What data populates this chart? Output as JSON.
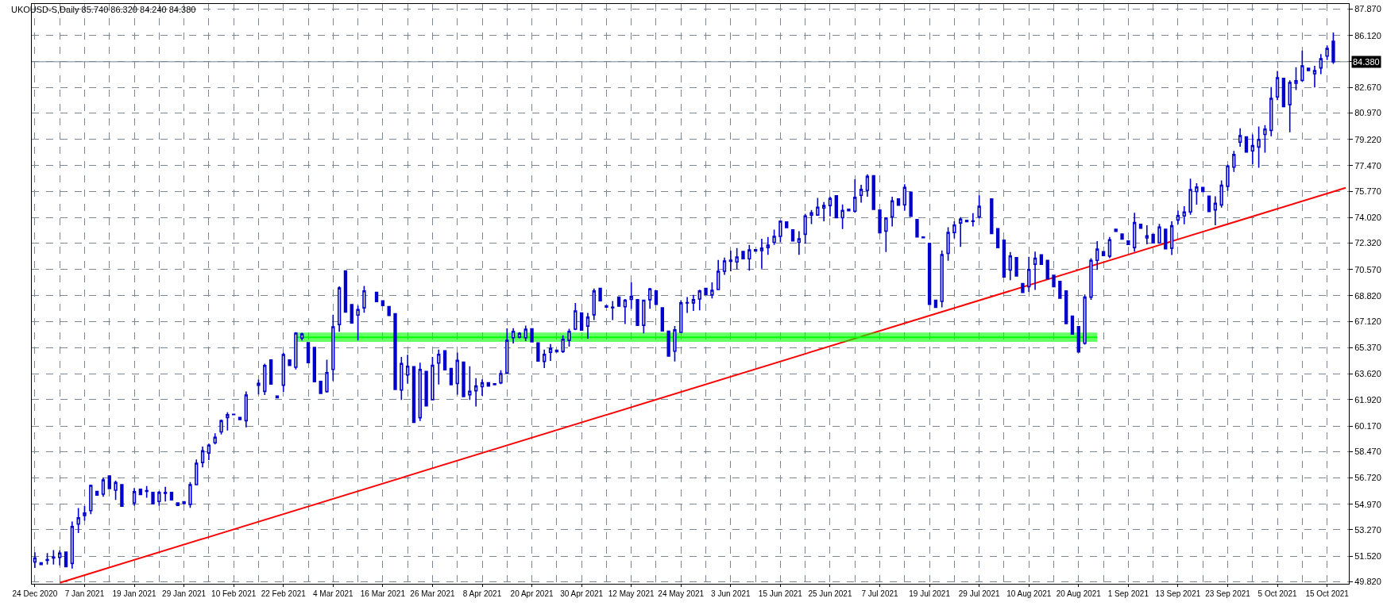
{
  "chart_data": {
    "type": "candlestick",
    "title": "UKOUSD-S,Daily 85.740 86.320 84.240 84.380",
    "categories": [
      "24 Dec 2020",
      null,
      null,
      null,
      null,
      null,
      null,
      null,
      "7 Jan 2021",
      null,
      null,
      null,
      null,
      null,
      null,
      null,
      "19 Jan 2021",
      null,
      null,
      null,
      null,
      null,
      null,
      null,
      "29 Jan 2021",
      null,
      null,
      null,
      null,
      null,
      null,
      null,
      "10 Feb 2021",
      null,
      null,
      null,
      null,
      null,
      null,
      null,
      "22 Feb 2021",
      null,
      null,
      null,
      null,
      null,
      null,
      null,
      "4 Mar 2021",
      null,
      null,
      null,
      null,
      null,
      null,
      null,
      "16 Mar 2021",
      null,
      null,
      null,
      null,
      null,
      null,
      null,
      "26 Mar 2021",
      null,
      null,
      null,
      null,
      null,
      null,
      null,
      "8 Apr 2021",
      null,
      null,
      null,
      null,
      null,
      null,
      null,
      "20 Apr 2021",
      null,
      null,
      null,
      null,
      null,
      null,
      null,
      "30 Apr 2021",
      null,
      null,
      null,
      null,
      null,
      null,
      null,
      "12 May 2021",
      null,
      null,
      null,
      null,
      null,
      null,
      null,
      "24 May 2021",
      null,
      null,
      null,
      null,
      null,
      null,
      null,
      "3 Jun 2021",
      null,
      null,
      null,
      null,
      null,
      null,
      null,
      "15 Jun 2021",
      null,
      null,
      null,
      null,
      null,
      null,
      null,
      "25 Jun 2021",
      null,
      null,
      null,
      null,
      null,
      null,
      null,
      "7 Jul 2021",
      null,
      null,
      null,
      null,
      null,
      null,
      null,
      "19 Jul 2021",
      null,
      null,
      null,
      null,
      null,
      null,
      null,
      "29 Jul 2021",
      null,
      null,
      null,
      null,
      null,
      null,
      null,
      "10 Aug 2021",
      null,
      null,
      null,
      null,
      null,
      null,
      null,
      "20 Aug 2021",
      null,
      null,
      null,
      null,
      null,
      null,
      null,
      "1 Sep 2021",
      null,
      null,
      null,
      null,
      null,
      null,
      null,
      "13 Sep 2021",
      null,
      null,
      null,
      null,
      null,
      null,
      null,
      "23 Sep 2021",
      null,
      null,
      null,
      null,
      null,
      null,
      null,
      "5 Oct 2021",
      null,
      null,
      null,
      null,
      null,
      null,
      null,
      "15 Oct 2021",
      null,
      null,
      null
    ],
    "series": [
      {
        "color": "#0000cc",
        "ohlc": [
          [
            51.13,
            51.78,
            50.73,
            51.39
          ],
          [
            51.08,
            51.08,
            50.96,
            50.96
          ],
          [
            51.24,
            51.72,
            50.96,
            51.29
          ],
          [
            51.39,
            51.92,
            50.96,
            51.46
          ],
          [
            51.43,
            51.9,
            50.9,
            51.72
          ],
          [
            51.78,
            51.78,
            50.82,
            50.82
          ],
          [
            51.03,
            53.82,
            50.69,
            53.49
          ],
          [
            53.65,
            54.71,
            53.05,
            54.07
          ],
          [
            54.22,
            54.85,
            53.87,
            54.38
          ],
          [
            54.54,
            56.27,
            54.31,
            56.22
          ],
          [
            55.82,
            55.82,
            55.57,
            55.57
          ],
          [
            55.64,
            56.74,
            55.47,
            56.58
          ],
          [
            56.85,
            56.85,
            56.01,
            56.01
          ],
          [
            55.9,
            56.53,
            55.26,
            56.41
          ],
          [
            56.27,
            56.27,
            54.84,
            54.84
          ],
          null,
          [
            55.06,
            56.04,
            54.87,
            55.8
          ],
          [
            55.97,
            55.97,
            55.62,
            55.62
          ],
          [
            55.83,
            56.18,
            55.4,
            55.87
          ],
          [
            55.76,
            55.76,
            54.99,
            54.99
          ],
          [
            55.15,
            55.85,
            54.87,
            55.75
          ],
          [
            55.75,
            56.13,
            55.15,
            55.69
          ],
          [
            55.76,
            55.76,
            55.26,
            55.26
          ],
          [
            55.06,
            55.06,
            54.89,
            54.89
          ],
          [
            55.13,
            55.13,
            55.01,
            55.01
          ],
          [
            54.96,
            56.44,
            54.73,
            56.27
          ],
          [
            56.27,
            57.95,
            56.27,
            57.69
          ],
          [
            57.74,
            58.8,
            57.42,
            58.52
          ],
          [
            58.37,
            59.0,
            57.9,
            58.89
          ],
          [
            59.05,
            59.68,
            58.94,
            59.42
          ],
          [
            59.78,
            60.6,
            59.61,
            60.52
          ],
          [
            60.73,
            61.08,
            59.87,
            60.92
          ],
          [
            60.93,
            60.95,
            60.93,
            60.95
          ],
          [
            60.74,
            60.74,
            60.6,
            60.6
          ],
          [
            60.52,
            62.47,
            60.08,
            62.23
          ],
          null,
          [
            62.88,
            63.26,
            62.27,
            63.0
          ],
          [
            62.47,
            64.31,
            62.23,
            64.19
          ],
          [
            64.56,
            64.56,
            62.96,
            62.96
          ],
          [
            62.16,
            62.16,
            62.04,
            62.04
          ],
          [
            62.88,
            65.03,
            62.44,
            64.92
          ],
          [
            64.56,
            64.56,
            64.19,
            64.19
          ],
          [
            64.07,
            66.41,
            63.93,
            66.34
          ],
          [
            66.01,
            66.37,
            65.85,
            66.29
          ],
          [
            65.71,
            65.71,
            64.38,
            64.38
          ],
          [
            65.39,
            65.39,
            63.12,
            63.12
          ],
          [
            63.14,
            63.14,
            62.34,
            62.34
          ],
          [
            62.46,
            64.57,
            62.39,
            63.72
          ],
          [
            63.93,
            67.56,
            63.17,
            66.76
          ],
          [
            66.91,
            69.45,
            66.43,
            69.34
          ],
          [
            70.48,
            70.48,
            67.74,
            67.74
          ],
          [
            68.24,
            68.24,
            67.02,
            67.02
          ],
          [
            67.54,
            68.17,
            65.85,
            67.91
          ],
          [
            68.02,
            69.48,
            67.7,
            69.15
          ],
          null,
          [
            69.05,
            69.05,
            68.44,
            68.44
          ],
          [
            68.49,
            68.49,
            68.17,
            68.17
          ],
          [
            68.1,
            68.1,
            67.51,
            67.51
          ],
          [
            67.63,
            67.63,
            62.6,
            62.6
          ],
          [
            62.56,
            64.76,
            61.9,
            64.32
          ],
          [
            63.56,
            64.9,
            62.98,
            64.14
          ],
          [
            64.11,
            64.11,
            60.41,
            60.41
          ],
          [
            60.72,
            64.37,
            60.5,
            63.93
          ],
          [
            63.79,
            63.79,
            61.51,
            61.51
          ],
          [
            61.92,
            64.76,
            61.92,
            64.2
          ],
          [
            64.35,
            65.25,
            62.92,
            64.93
          ],
          [
            65.16,
            65.16,
            63.91,
            63.91
          ],
          [
            63.99,
            63.99,
            62.92,
            62.92
          ],
          [
            62.99,
            65.05,
            62.25,
            64.53
          ],
          [
            64.41,
            64.41,
            62.13,
            62.13
          ],
          [
            62.25,
            64.14,
            61.9,
            62.48
          ],
          [
            62.51,
            63.35,
            61.46,
            62.83
          ],
          [
            62.78,
            63.27,
            62.18,
            63.04
          ],
          [
            63.04,
            63.04,
            62.83,
            62.83
          ],
          [
            62.98,
            62.98,
            62.92,
            62.92
          ],
          [
            63.04,
            63.88,
            62.95,
            63.65
          ],
          [
            63.7,
            66.65,
            63.7,
            65.86
          ],
          [
            66.04,
            66.67,
            65.65,
            66.46
          ],
          [
            66.07,
            66.4,
            66.0,
            66.33
          ],
          [
            66.04,
            66.84,
            65.81,
            66.6
          ],
          [
            66.63,
            66.63,
            65.76,
            65.76
          ],
          [
            65.69,
            65.69,
            64.49,
            64.49
          ],
          [
            64.46,
            65.25,
            64.02,
            64.93
          ],
          [
            65.07,
            65.62,
            64.49,
            65.32
          ],
          [
            65.2,
            65.2,
            65.11,
            65.11
          ],
          [
            65.12,
            66.19,
            65.02,
            65.93
          ],
          [
            65.86,
            66.63,
            65.44,
            66.46
          ],
          [
            66.6,
            68.35,
            66.54,
            67.82
          ],
          [
            67.68,
            67.68,
            66.54,
            66.54
          ],
          [
            66.81,
            67.68,
            65.97,
            67.4
          ],
          [
            67.56,
            69.31,
            67.21,
            69.14
          ],
          [
            69.31,
            69.31,
            68.49,
            68.49
          ],
          [
            68.15,
            68.15,
            68.07,
            68.07
          ],
          [
            68.03,
            68.47,
            67.21,
            68.07
          ],
          [
            68.74,
            68.74,
            68.14,
            68.14
          ],
          [
            68.09,
            68.61,
            66.95,
            68.53
          ],
          [
            68.59,
            69.72,
            67.96,
            68.77
          ],
          [
            68.56,
            68.56,
            66.86,
            66.86
          ],
          [
            66.86,
            68.53,
            66.33,
            68.53
          ],
          [
            68.56,
            69.35,
            67.96,
            69.28
          ],
          [
            69.14,
            69.14,
            68.26,
            68.26
          ],
          [
            68.03,
            68.03,
            66.49,
            66.49
          ],
          [
            66.47,
            66.47,
            64.81,
            64.81
          ],
          [
            65.14,
            66.82,
            64.46,
            66.56
          ],
          [
            66.39,
            68.53,
            66.39,
            68.35
          ],
          [
            68.35,
            68.74,
            67.68,
            68.37
          ],
          [
            68.35,
            68.88,
            67.82,
            68.56
          ],
          [
            68.61,
            69.23,
            67.86,
            69.14
          ],
          [
            69.31,
            69.31,
            68.91,
            68.91
          ],
          [
            68.88,
            69.72,
            68.65,
            69.19
          ],
          [
            69.24,
            71.21,
            69.24,
            70.45
          ],
          [
            70.45,
            71.36,
            70.22,
            71.14
          ],
          [
            71.19,
            71.82,
            70.45,
            71.12
          ],
          [
            71.07,
            71.99,
            70.58,
            71.4
          ],
          [
            71.77,
            71.77,
            71.28,
            71.28
          ],
          [
            71.28,
            72.21,
            70.49,
            71.87
          ],
          [
            71.89,
            71.89,
            71.8,
            71.8
          ],
          [
            71.82,
            72.61,
            70.63,
            71.99
          ],
          [
            72.03,
            72.73,
            71.54,
            72.19
          ],
          [
            72.38,
            73.22,
            72.21,
            72.77
          ],
          [
            72.77,
            73.82,
            72.38,
            73.78
          ],
          [
            73.73,
            73.73,
            73.35,
            73.35
          ],
          [
            73.21,
            73.21,
            72.47,
            72.47
          ],
          [
            72.38,
            73.12,
            71.54,
            72.61
          ],
          [
            72.91,
            74.27,
            72.29,
            74.13
          ],
          [
            74.19,
            74.52,
            73.59,
            74.34
          ],
          [
            74.19,
            75.33,
            74.19,
            74.71
          ],
          [
            74.66,
            75.05,
            73.78,
            74.82
          ],
          [
            74.82,
            75.41,
            74.1,
            75.29
          ],
          [
            75.47,
            75.47,
            74.01,
            74.01
          ],
          [
            74.01,
            74.89,
            73.26,
            74.5
          ],
          [
            74.57,
            74.57,
            74.48,
            74.48
          ],
          [
            74.45,
            76.57,
            74.34,
            75.36
          ],
          [
            75.5,
            76.2,
            75.01,
            75.89
          ],
          [
            75.83,
            76.9,
            75.41,
            76.76
          ],
          [
            76.8,
            76.8,
            74.57,
            74.57
          ],
          [
            74.52,
            74.52,
            73.01,
            73.01
          ],
          [
            73.12,
            74.02,
            71.73,
            73.99
          ],
          [
            74.08,
            75.41,
            73.43,
            75.13
          ],
          [
            75.26,
            75.26,
            74.84,
            74.84
          ],
          [
            74.87,
            76.24,
            74.48,
            76.03
          ],
          [
            75.71,
            75.71,
            74.1,
            74.1
          ],
          [
            73.89,
            73.89,
            72.73,
            72.73
          ],
          [
            72.73,
            72.73,
            72.68,
            72.68
          ],
          [
            72.31,
            72.31,
            68.26,
            68.26
          ],
          [
            68.52,
            68.52,
            68.05,
            68.05
          ],
          [
            68.45,
            71.84,
            68.05,
            71.56
          ],
          [
            71.64,
            73.38,
            71.15,
            73.03
          ],
          [
            73.03,
            73.78,
            72.64,
            73.52
          ],
          [
            73.66,
            74.05,
            72.07,
            73.92
          ],
          [
            73.84,
            73.84,
            73.75,
            73.75
          ],
          [
            73.77,
            74.31,
            73.43,
            73.8
          ],
          [
            74.08,
            75.5,
            73.96,
            74.77
          ],
          null,
          [
            75.26,
            75.26,
            72.96,
            72.96
          ],
          [
            73.29,
            73.29,
            72.03,
            72.03
          ],
          [
            72.52,
            72.52,
            70.07,
            70.07
          ],
          [
            70.54,
            71.73,
            69.86,
            71.47
          ],
          [
            71.36,
            71.36,
            70.14,
            70.14
          ],
          [
            69.63,
            69.63,
            69.05,
            69.05
          ],
          [
            69.43,
            71.41,
            69.08,
            70.57
          ],
          [
            70.92,
            71.76,
            69.22,
            71.32
          ],
          [
            71.55,
            71.55,
            70.92,
            70.92
          ],
          [
            71.18,
            71.18,
            69.96,
            69.96
          ],
          [
            70.19,
            70.19,
            69.43,
            69.43
          ],
          [
            69.78,
            69.78,
            68.66,
            68.66
          ],
          [
            69.14,
            69.14,
            66.98,
            66.98
          ],
          [
            67.47,
            67.47,
            66.28,
            66.28
          ],
          [
            66.77,
            66.77,
            65.09,
            65.09
          ],
          [
            65.67,
            68.91,
            65.58,
            68.73
          ],
          [
            68.73,
            71.32,
            68.56,
            71.18
          ],
          [
            71.18,
            72.46,
            70.55,
            71.92
          ],
          [
            71.76,
            71.76,
            71.5,
            71.5
          ],
          [
            71.46,
            72.73,
            71.32,
            72.55
          ],
          [
            73.25,
            73.25,
            73.11,
            73.11
          ],
          [
            72.93,
            72.93,
            72.59,
            72.59
          ],
          [
            72.46,
            72.46,
            72.24,
            72.24
          ],
          [
            72.03,
            74.34,
            71.76,
            73.69
          ],
          [
            73.57,
            73.57,
            73.32,
            73.32
          ],
          [
            72.67,
            73.51,
            72.24,
            72.81
          ],
          [
            72.9,
            72.9,
            72.34,
            72.34
          ],
          [
            72.34,
            73.6,
            72.29,
            73.39
          ],
          [
            73.25,
            73.25,
            71.94,
            71.94
          ],
          [
            71.99,
            73.78,
            71.53,
            73.48
          ],
          [
            73.86,
            74.48,
            73.57,
            74.16
          ],
          [
            74.13,
            74.77,
            73.57,
            74.39
          ],
          [
            74.39,
            76.61,
            74.21,
            75.88
          ],
          [
            75.75,
            76.31,
            74.88,
            76.05
          ],
          [
            76.02,
            76.02,
            75.75,
            75.75
          ],
          [
            75.44,
            75.44,
            74.42,
            74.42
          ],
          [
            74.53,
            75.44,
            73.51,
            74.97
          ],
          [
            74.86,
            76.49,
            74.69,
            76.17
          ],
          [
            76.1,
            77.54,
            75.79,
            77.45
          ],
          [
            77.37,
            78.45,
            77.05,
            78.21
          ],
          [
            79.03,
            79.96,
            78.73,
            79.47
          ],
          [
            79.38,
            79.38,
            78.38,
            78.38
          ],
          [
            78.45,
            79.55,
            77.57,
            78.8
          ],
          [
            78.71,
            80.08,
            77.33,
            79.22
          ],
          [
            79.55,
            80.17,
            78.33,
            79.9
          ],
          [
            79.82,
            82.7,
            79.43,
            81.95
          ],
          [
            82.04,
            83.76,
            81.83,
            83.32
          ],
          [
            83.27,
            83.27,
            81.39,
            81.39
          ],
          [
            81.53,
            83.14,
            79.69,
            83.0
          ],
          [
            82.95,
            84.02,
            82.5,
            83.11
          ],
          [
            83.14,
            85.12,
            83.06,
            84.11
          ],
          [
            83.95,
            83.95,
            83.79,
            83.79
          ],
          [
            83.58,
            84.11,
            82.67,
            83.79
          ],
          [
            83.97,
            84.89,
            83.55,
            84.58
          ],
          [
            84.75,
            85.47,
            84.49,
            85.26
          ],
          [
            85.74,
            86.32,
            84.24,
            84.38
          ],
          null,
          null
        ]
      },
      {
        "type": "line",
        "color": "#ff0000",
        "values": [
          null,
          null,
          null,
          null,
          49.75,
          null,
          null,
          null,
          null,
          null,
          null,
          null,
          null,
          null,
          null,
          null,
          null,
          null,
          null,
          null,
          null,
          null,
          null,
          null,
          null,
          null,
          null,
          null,
          null,
          null,
          null,
          null,
          null,
          null,
          null,
          null,
          null,
          null,
          null,
          null,
          null,
          null,
          null,
          null,
          null,
          null,
          null,
          null,
          null,
          null,
          null,
          null,
          null,
          null,
          null,
          null,
          null,
          null,
          null,
          null,
          null,
          null,
          null,
          null,
          null,
          null,
          null,
          null,
          null,
          null,
          null,
          null,
          null,
          null,
          null,
          null,
          null,
          null,
          null,
          null,
          null,
          null,
          null,
          null,
          null,
          null,
          null,
          null,
          null,
          null,
          null,
          null,
          null,
          null,
          null,
          null,
          null,
          null,
          null,
          null,
          null,
          null,
          null,
          null,
          null,
          null,
          null,
          null,
          null,
          null,
          null,
          null,
          null,
          null,
          null,
          null,
          null,
          null,
          null,
          null,
          null,
          null,
          null,
          null,
          null,
          null,
          null,
          null,
          null,
          null,
          null,
          null,
          null,
          null,
          null,
          null,
          null,
          null,
          null,
          null,
          null,
          null,
          null,
          null,
          null,
          null,
          null,
          null,
          null,
          null,
          null,
          null,
          null,
          null,
          null,
          null,
          null,
          null,
          null,
          null,
          null,
          null,
          null,
          null,
          null,
          null,
          null,
          null,
          null,
          null,
          null,
          null,
          null,
          null,
          null,
          null,
          null,
          null,
          null,
          null,
          null,
          null,
          null,
          null,
          null,
          null,
          null,
          null,
          null,
          null,
          null,
          null,
          null,
          null,
          null,
          null,
          null,
          null,
          null,
          null,
          null,
          null,
          null,
          null,
          null,
          null,
          null,
          null,
          null,
          null,
          null,
          76.0
        ]
      },
      {
        "type": "line",
        "color": "#00ff00",
        "values": [
          null,
          null,
          null,
          null,
          null,
          null,
          null,
          null,
          null,
          null,
          null,
          null,
          null,
          null,
          null,
          null,
          null,
          null,
          null,
          null,
          null,
          null,
          null,
          null,
          null,
          null,
          null,
          null,
          null,
          null,
          null,
          null,
          null,
          null,
          null,
          null,
          null,
          null,
          null,
          null,
          null,
          null,
          66.07,
          null,
          null,
          null,
          null,
          null,
          null,
          null,
          null,
          null,
          null,
          null,
          null,
          null,
          null,
          null,
          null,
          null,
          null,
          null,
          null,
          null,
          null,
          null,
          null,
          null,
          null,
          null,
          null,
          null,
          null,
          null,
          null,
          null,
          null,
          null,
          null,
          null,
          null,
          null,
          null,
          null,
          null,
          null,
          null,
          null,
          null,
          null,
          null,
          null,
          null,
          null,
          null,
          null,
          null,
          null,
          null,
          null,
          null,
          null,
          null,
          null,
          null,
          null,
          null,
          null,
          null,
          null,
          null,
          null,
          null,
          null,
          null,
          null,
          null,
          null,
          null,
          null,
          null,
          null,
          null,
          null,
          null,
          null,
          null,
          null,
          null,
          null,
          null,
          null,
          null,
          null,
          null,
          null,
          null,
          null,
          null,
          null,
          null,
          null,
          null,
          null,
          null,
          null,
          null,
          null,
          null,
          null,
          null,
          null,
          null,
          null,
          null,
          null,
          null,
          null,
          null,
          null,
          null,
          null,
          null,
          null,
          null,
          null,
          null,
          null,
          null,
          null,
          null,
          66.07,
          null,
          null,
          null,
          null,
          null,
          null,
          null,
          null,
          null,
          null,
          null,
          null,
          null,
          null,
          null,
          null,
          null,
          null,
          null,
          null,
          null,
          null,
          null,
          null,
          null,
          null,
          null,
          null,
          null,
          null,
          null,
          null,
          null,
          null,
          null,
          null,
          null,
          null,
          null,
          null
        ],
        "lower": [
          null,
          null,
          null,
          null,
          null,
          null,
          null,
          null,
          null,
          null,
          null,
          null,
          null,
          null,
          null,
          null,
          null,
          null,
          null,
          null,
          null,
          null,
          null,
          null,
          null,
          null,
          null,
          null,
          null,
          null,
          null,
          null,
          null,
          null,
          null,
          null,
          null,
          null,
          null,
          null,
          null,
          null,
          65.76,
          null,
          null,
          null,
          null,
          null,
          null,
          null,
          null,
          null,
          null,
          null,
          null,
          null,
          null,
          null,
          null,
          null,
          null,
          null,
          null,
          null,
          null,
          null,
          null,
          null,
          null,
          null,
          null,
          null,
          null,
          null,
          null,
          null,
          null,
          null,
          null,
          null,
          null,
          null,
          null,
          null,
          null,
          null,
          null,
          null,
          null,
          null,
          null,
          null,
          null,
          null,
          null,
          null,
          null,
          null,
          null,
          null,
          null,
          null,
          null,
          null,
          null,
          null,
          null,
          null,
          null,
          null,
          null,
          null,
          null,
          null,
          null,
          null,
          null,
          null,
          null,
          null,
          null,
          null,
          null,
          null,
          null,
          null,
          null,
          null,
          null,
          null,
          null,
          null,
          null,
          null,
          null,
          null,
          null,
          null,
          null,
          null,
          null,
          null,
          null,
          null,
          null,
          null,
          null,
          null,
          null,
          null,
          null,
          null,
          null,
          null,
          null,
          null,
          null,
          null,
          null,
          null,
          null,
          null,
          null,
          null,
          null,
          null,
          null,
          null,
          null,
          null,
          null,
          65.76,
          null,
          null,
          null,
          null,
          null,
          null,
          null,
          null,
          null,
          null,
          null,
          null,
          null,
          null,
          null,
          null,
          null,
          null,
          null,
          null,
          null,
          null,
          null,
          null,
          null,
          null,
          null,
          null,
          null,
          null,
          null,
          null,
          null,
          null,
          null,
          null,
          null,
          null,
          null,
          null
        ],
        "upper": [
          null,
          null,
          null,
          null,
          null,
          null,
          null,
          null,
          null,
          null,
          null,
          null,
          null,
          null,
          null,
          null,
          null,
          null,
          null,
          null,
          null,
          null,
          null,
          null,
          null,
          null,
          null,
          null,
          null,
          null,
          null,
          null,
          null,
          null,
          null,
          null,
          null,
          null,
          null,
          null,
          null,
          null,
          66.38,
          null,
          null,
          null,
          null,
          null,
          null,
          null,
          null,
          null,
          null,
          null,
          null,
          null,
          null,
          null,
          null,
          null,
          null,
          null,
          null,
          null,
          null,
          null,
          null,
          null,
          null,
          null,
          null,
          null,
          null,
          null,
          null,
          null,
          null,
          null,
          null,
          null,
          null,
          null,
          null,
          null,
          null,
          null,
          null,
          null,
          null,
          null,
          null,
          null,
          null,
          null,
          null,
          null,
          null,
          null,
          null,
          null,
          null,
          null,
          null,
          null,
          null,
          null,
          null,
          null,
          null,
          null,
          null,
          null,
          null,
          null,
          null,
          null,
          null,
          null,
          null,
          null,
          null,
          null,
          null,
          null,
          null,
          null,
          null,
          null,
          null,
          null,
          null,
          null,
          null,
          null,
          null,
          null,
          null,
          null,
          null,
          null,
          null,
          null,
          null,
          null,
          null,
          null,
          null,
          null,
          null,
          null,
          null,
          null,
          null,
          null,
          null,
          null,
          null,
          null,
          null,
          null,
          null,
          null,
          null,
          null,
          null,
          null,
          null,
          null,
          null,
          null,
          null,
          66.38,
          null,
          null,
          null,
          null,
          null,
          null,
          null,
          null,
          null,
          null,
          null,
          null,
          null,
          null,
          null,
          null,
          null,
          null,
          null,
          null,
          null,
          null,
          null,
          null,
          null,
          null,
          null,
          null,
          null,
          null,
          null,
          null,
          null,
          null,
          null,
          null,
          null,
          null,
          null,
          null
        ]
      }
    ],
    "ylim": [
      49.68,
      88.22
    ],
    "yticks": [
      {
        "value": 87.87,
        "label": "87.870"
      },
      {
        "value": 86.12,
        "label": "86.120"
      },
      {
        "value": 84.42,
        "label": null
      },
      {
        "value": 82.67,
        "label": "82.670"
      },
      {
        "value": 80.97,
        "label": "80.970"
      },
      {
        "value": 79.22,
        "label": "79.220"
      },
      {
        "value": 77.47,
        "label": "77.470"
      },
      {
        "value": 75.77,
        "label": "75.770"
      },
      {
        "value": 74.02,
        "label": "74.020"
      },
      {
        "value": 72.32,
        "label": "72.320"
      },
      {
        "value": 70.57,
        "label": "70.570"
      },
      {
        "value": 68.82,
        "label": "68.820"
      },
      {
        "value": 67.12,
        "label": "67.120"
      },
      {
        "value": 65.37,
        "label": "65.370"
      },
      {
        "value": 63.62,
        "label": "63.620"
      },
      {
        "value": 61.92,
        "label": "61.920"
      },
      {
        "value": 60.17,
        "label": "60.170"
      },
      {
        "value": 58.47,
        "label": "58.470"
      },
      {
        "value": 56.72,
        "label": "56.720"
      },
      {
        "value": 54.97,
        "label": "54.970"
      },
      {
        "value": 53.27,
        "label": "53.270"
      },
      {
        "value": 51.52,
        "label": "51.520"
      },
      {
        "value": 49.82,
        "label": "49.820"
      }
    ],
    "ref_lines": [
      {
        "axis": "y",
        "value": 84.38,
        "label": "84.380",
        "color": "#708090"
      }
    ],
    "grid": true
  }
}
